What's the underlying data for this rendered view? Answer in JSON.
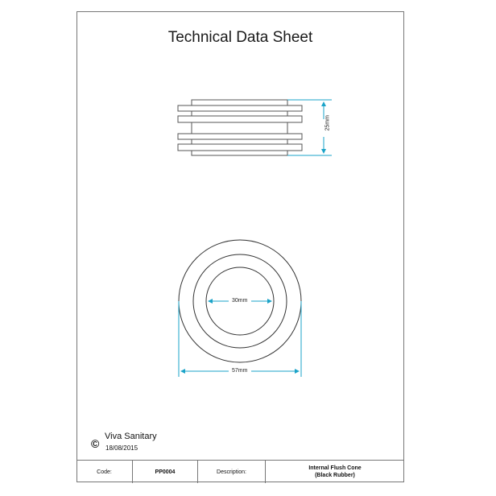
{
  "title": "Technical Data Sheet",
  "dimensions": {
    "height": "25mm",
    "inner_diameter": "30mm",
    "outer_diameter": "57mm"
  },
  "colors": {
    "dimension_line": "#1aa3c8",
    "outline": "#333333"
  },
  "footer": {
    "copyright_symbol": "©",
    "company": "Viva Sanitary",
    "date": "18/08/2015"
  },
  "table": {
    "code_label": "Code:",
    "code_value": "PP0004",
    "description_label": "Description:",
    "description_line1": "Internal Flush Cone",
    "description_line2": "(Black Rubber)"
  }
}
